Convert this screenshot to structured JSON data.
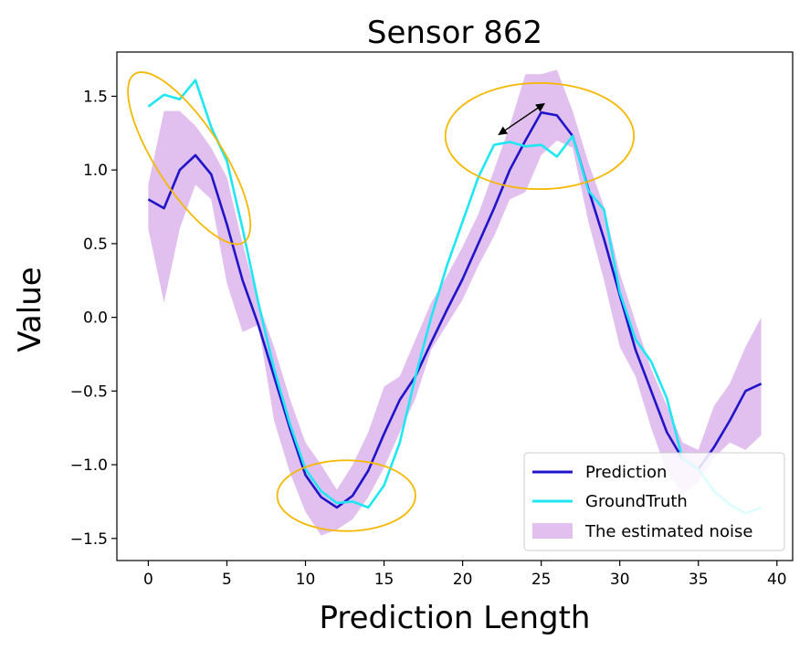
{
  "chart_data": {
    "type": "line",
    "title": "Sensor 862",
    "xlabel": "Prediction Length",
    "ylabel": "Value",
    "xlim": [
      -2,
      41
    ],
    "ylim": [
      -1.65,
      1.8
    ],
    "xticks": [
      0,
      5,
      10,
      15,
      20,
      25,
      30,
      35,
      40
    ],
    "yticks": [
      -1.5,
      -1.0,
      -0.5,
      0.0,
      0.5,
      1.0,
      1.5
    ],
    "xtick_labels": [
      "0",
      "5",
      "10",
      "15",
      "20",
      "25",
      "30",
      "35",
      "40"
    ],
    "ytick_labels": [
      "−1.5",
      "−1.0",
      "−0.5",
      "0.0",
      "0.5",
      "1.0",
      "1.5"
    ],
    "grid": false,
    "legend_position": "lower-right",
    "x": [
      0,
      1,
      2,
      3,
      4,
      5,
      6,
      7,
      8,
      9,
      10,
      11,
      12,
      13,
      14,
      15,
      16,
      17,
      18,
      19,
      20,
      21,
      22,
      23,
      24,
      25,
      26,
      27,
      28,
      29,
      30,
      31,
      32,
      33,
      34,
      35,
      36,
      37,
      38,
      39
    ],
    "series": [
      {
        "name": "Prediction",
        "color": "#1f14c8",
        "values": [
          0.8,
          0.74,
          1.0,
          1.1,
          0.97,
          0.63,
          0.25,
          -0.05,
          -0.4,
          -0.75,
          -1.07,
          -1.22,
          -1.29,
          -1.21,
          -1.04,
          -0.79,
          -0.56,
          -0.4,
          -0.17,
          0.05,
          0.26,
          0.5,
          0.74,
          1.0,
          1.2,
          1.39,
          1.37,
          1.23,
          0.87,
          0.53,
          0.15,
          -0.22,
          -0.5,
          -0.78,
          -0.96,
          -1.03,
          -0.88,
          -0.7,
          -0.5,
          -0.45
        ]
      },
      {
        "name": "GroundTruth",
        "color": "#1ee6f2",
        "values": [
          1.43,
          1.51,
          1.48,
          1.61,
          1.29,
          1.06,
          0.6,
          0.1,
          -0.35,
          -0.72,
          -1.03,
          -1.18,
          -1.26,
          -1.25,
          -1.29,
          -1.14,
          -0.85,
          -0.4,
          0.0,
          0.35,
          0.65,
          0.95,
          1.17,
          1.19,
          1.16,
          1.17,
          1.09,
          1.23,
          0.86,
          0.73,
          0.17,
          -0.15,
          -0.3,
          -0.55,
          -0.96,
          -1.03,
          -1.18,
          -1.27,
          -1.33,
          -1.29
        ]
      }
    ],
    "noise_band": {
      "name": "The estimated noise",
      "color": "#e1bfee",
      "lower": [
        0.6,
        0.1,
        0.6,
        0.9,
        0.8,
        0.23,
        -0.1,
        -0.05,
        -0.7,
        -1.05,
        -1.32,
        -1.48,
        -1.44,
        -1.37,
        -1.22,
        -1.02,
        -0.78,
        -0.55,
        -0.22,
        -0.05,
        0.12,
        0.35,
        0.55,
        0.8,
        0.85,
        1.1,
        1.2,
        1.15,
        0.65,
        0.25,
        -0.2,
        -0.4,
        -0.75,
        -1.05,
        -1.2,
        -1.12,
        -0.95,
        -0.85,
        -0.9,
        -0.8
      ],
      "upper": [
        0.9,
        1.4,
        1.4,
        1.3,
        1.15,
        0.95,
        0.5,
        0.1,
        -0.2,
        -0.55,
        -0.85,
        -1.0,
        -1.17,
        -1.0,
        -0.78,
        -0.47,
        -0.4,
        -0.15,
        0.1,
        0.28,
        0.48,
        0.7,
        1.0,
        1.3,
        1.65,
        1.65,
        1.68,
        1.4,
        1.05,
        0.75,
        0.3,
        -0.03,
        -0.35,
        -0.6,
        -0.85,
        -0.9,
        -0.6,
        -0.45,
        -0.2,
        0.0
      ]
    },
    "annotations": [
      {
        "type": "ellipse",
        "label": "",
        "cx": 2.6,
        "cy": 1.08,
        "rx": 2.1,
        "ry": 0.68,
        "rotation_deg": 33,
        "color": "#f5b800"
      },
      {
        "type": "ellipse",
        "label": "",
        "cx": 12.6,
        "cy": -1.21,
        "rx": 4.4,
        "ry": 0.24,
        "rotation_deg": 0,
        "color": "#f5b800"
      },
      {
        "type": "ellipse",
        "label": "",
        "cx": 24.9,
        "cy": 1.23,
        "rx": 6.0,
        "ry": 0.36,
        "rotation_deg": 0,
        "color": "#f5b800"
      },
      {
        "type": "double-arrow",
        "label": "",
        "from": [
          22.3,
          1.24
        ],
        "to": [
          25.2,
          1.45
        ],
        "color": "#000000"
      }
    ]
  }
}
